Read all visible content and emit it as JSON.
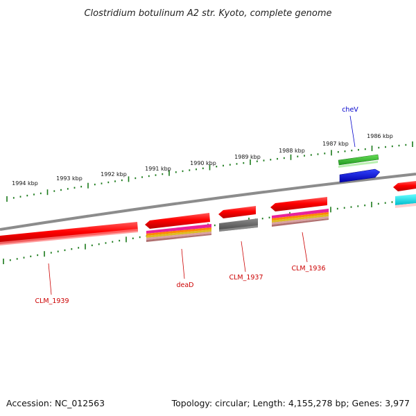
{
  "title": "Clostridium botulinum A2 str. Kyoto, complete genome",
  "footer": {
    "accession": "Accession: NC_012563",
    "summary": "Topology: circular; Length: 4,155,278 bp; Genes: 3,977"
  },
  "scale_labels": [
    "1994 kbp",
    "1993 kbp",
    "1992 kbp",
    "1991 kbp",
    "1990 kbp",
    "1989 kbp",
    "1988 kbp",
    "1987 kbp",
    "1986 kbp"
  ],
  "genes": [
    {
      "label": "cheV",
      "color": "#0000cc"
    },
    {
      "label": "deaD",
      "color": "#cc0000"
    },
    {
      "label": "CLM_1937",
      "color": "#cc0000"
    },
    {
      "label": "CLM_1936",
      "color": "#cc0000"
    },
    {
      "label": "CLM_1939",
      "color": "#cc0000"
    }
  ],
  "colors": {
    "backbone": "#8c8c8c",
    "tick": "#1a7a1a",
    "forward_strand": "#ff0000",
    "reverse_strand": "#ff0000",
    "green_feature": "#33bb33",
    "blue_feature": "#0000ee",
    "cyan_feature": "#00e5ee",
    "gray_feature": "#666666"
  }
}
